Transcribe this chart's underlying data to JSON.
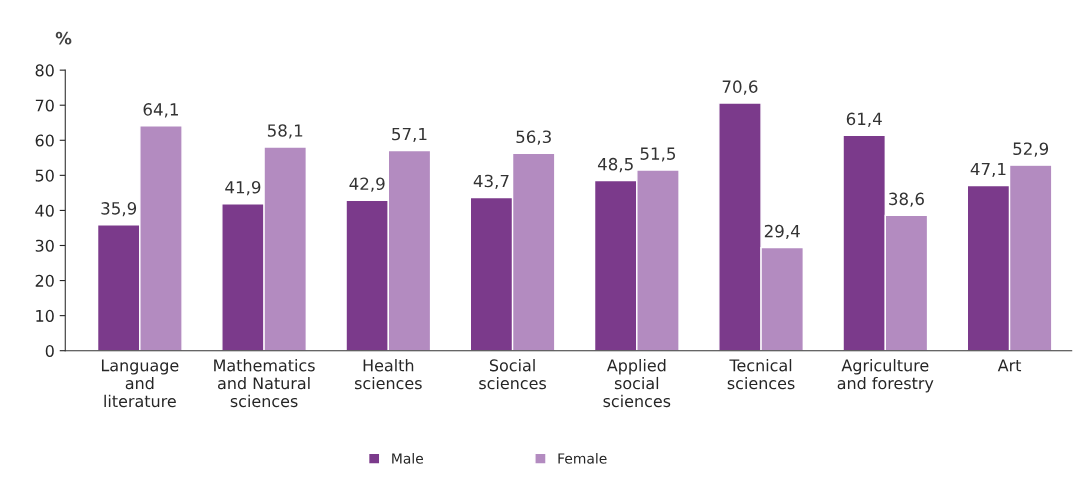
{
  "chart_data": {
    "type": "bar",
    "ylabel": "%",
    "categories": [
      "Language\nand\nliterature",
      "Mathematics\nand Natural\nsciences",
      "Health\nsciences",
      "Social\nsciences",
      "Applied\nsocial\nsciences",
      "Tecnical\nsciences",
      "Agriculture\nand forestry",
      "Art"
    ],
    "series": [
      {
        "name": "Male",
        "color": "#7b3a8b",
        "values": [
          35.9,
          41.9,
          42.9,
          43.7,
          48.5,
          70.6,
          61.4,
          47.1
        ],
        "value_labels": [
          "35,9",
          "41,9",
          "42,9",
          "43,7",
          "48,5",
          "70,6",
          "61,4",
          "47,1"
        ]
      },
      {
        "name": "Female",
        "color": "#b38bc0",
        "values": [
          64.1,
          58.1,
          57.1,
          56.3,
          51.5,
          29.4,
          38.6,
          52.9
        ],
        "value_labels": [
          "64,1",
          "58,1",
          "57,1",
          "56,3",
          "51,5",
          "29,4",
          "38,6",
          "52,9"
        ]
      }
    ],
    "ylim": [
      0,
      80
    ],
    "yticks": [
      0,
      10,
      20,
      30,
      40,
      50,
      60,
      70,
      80
    ],
    "grid": false,
    "legend": "bottom"
  }
}
